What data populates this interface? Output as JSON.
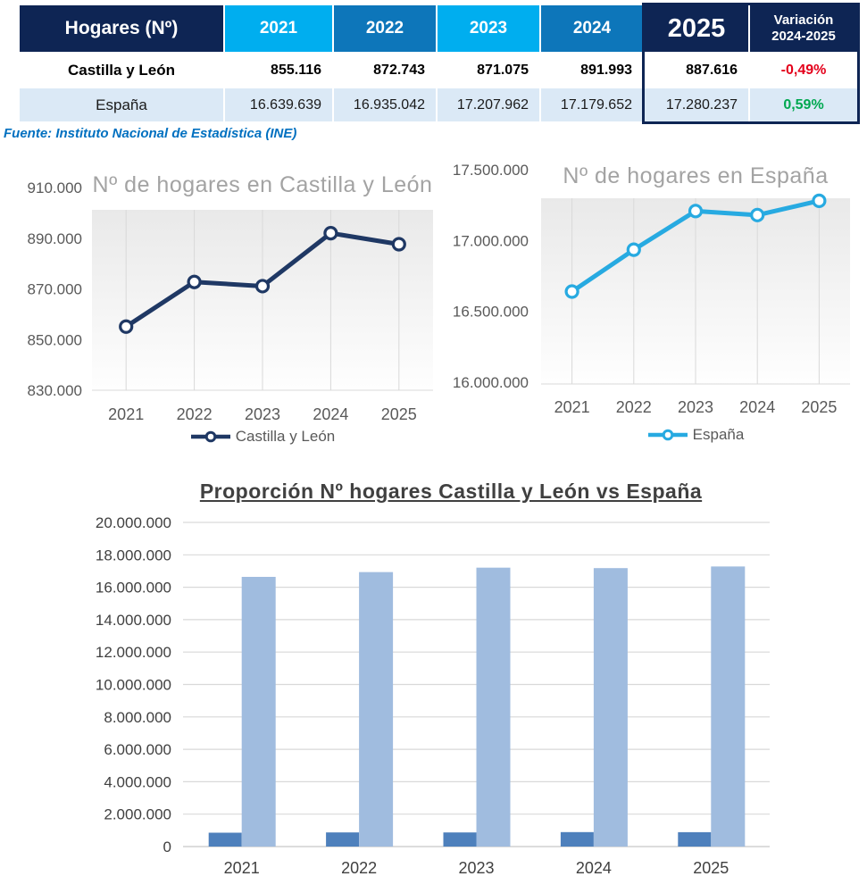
{
  "colors": {
    "navy": "#0E2554",
    "year_light": "#00AEEF",
    "year_mid": "#0D76BA",
    "row_alt_bg": "#DBE9F6",
    "negative": "#E4001B",
    "positive": "#00A850",
    "source_blue": "#0070C0",
    "cyl_line": "#1F3864",
    "esp_line": "#27AAE1",
    "bar_cyl": "#4E80BC",
    "bar_esp": "#A0BCDF"
  },
  "table": {
    "title": "Hogares (Nº)",
    "col_headers": [
      "2021",
      "2022",
      "2023",
      "2024",
      "2025"
    ],
    "variation_header": [
      "Variación",
      "2024-2025"
    ],
    "rows": [
      {
        "label": "Castilla y León",
        "values": [
          "855.116",
          "872.743",
          "871.075",
          "891.993",
          "887.616"
        ],
        "variation": "-0,49%"
      },
      {
        "label": "España",
        "values": [
          "16.639.639",
          "16.935.042",
          "17.207.962",
          "17.179.652",
          "17.280.237"
        ],
        "variation": "0,59%"
      }
    ]
  },
  "source": "Fuente: Instituto Nacional de Estadística (INE)",
  "chart_data": [
    {
      "type": "line",
      "title": "Nº de hogares en Castilla y León",
      "categories": [
        "2021",
        "2022",
        "2023",
        "2024",
        "2025"
      ],
      "series": [
        {
          "name": "Castilla y León",
          "color": "#1F3864",
          "values": [
            855116,
            872743,
            871075,
            891993,
            887616
          ]
        }
      ],
      "ylim": [
        830000,
        910000
      ],
      "yticks": [
        {
          "value": 910000,
          "label": "910.000"
        },
        {
          "value": 890000,
          "label": "890.000"
        },
        {
          "value": 870000,
          "label": "870.000"
        },
        {
          "value": 850000,
          "label": "850.000"
        },
        {
          "value": 830000,
          "label": "830.000"
        }
      ],
      "grid": "vertical",
      "legend_position": "bottom"
    },
    {
      "type": "line",
      "title": "Nº de hogares en España",
      "categories": [
        "2021",
        "2022",
        "2023",
        "2024",
        "2025"
      ],
      "series": [
        {
          "name": "España",
          "color": "#27AAE1",
          "values": [
            16639639,
            16935042,
            17207962,
            17179652,
            17280237
          ]
        }
      ],
      "ylim": [
        16000000,
        17500000
      ],
      "yticks": [
        {
          "value": 17500000,
          "label": "17.500.000"
        },
        {
          "value": 17000000,
          "label": "17.000.000"
        },
        {
          "value": 16500000,
          "label": "16.500.000"
        },
        {
          "value": 16000000,
          "label": "16.000.000"
        }
      ],
      "grid": "vertical",
      "legend_position": "bottom"
    },
    {
      "type": "bar",
      "title": "Proporción Nº hogares Castilla y León vs España",
      "categories": [
        "2021",
        "2022",
        "2023",
        "2024",
        "2025"
      ],
      "series": [
        {
          "name": "Castilla y León",
          "color": "#4E80BC",
          "values": [
            855116,
            872743,
            871075,
            891993,
            887616
          ]
        },
        {
          "name": "España",
          "color": "#A0BCDF",
          "values": [
            16639639,
            16935042,
            17207962,
            17179652,
            17280237
          ]
        }
      ],
      "ylim": [
        0,
        20000000
      ],
      "yticks": [
        {
          "value": 20000000,
          "label": "20.000.000"
        },
        {
          "value": 18000000,
          "label": "18.000.000"
        },
        {
          "value": 16000000,
          "label": "16.000.000"
        },
        {
          "value": 14000000,
          "label": "14.000.000"
        },
        {
          "value": 12000000,
          "label": "12.000.000"
        },
        {
          "value": 10000000,
          "label": "10.000.000"
        },
        {
          "value": 8000000,
          "label": "8.000.000"
        },
        {
          "value": 6000000,
          "label": "6.000.000"
        },
        {
          "value": 4000000,
          "label": "4.000.000"
        },
        {
          "value": 2000000,
          "label": "2.000.000"
        },
        {
          "value": 0,
          "label": "0"
        }
      ],
      "grid": "horizontal",
      "legend_position": "none"
    }
  ]
}
